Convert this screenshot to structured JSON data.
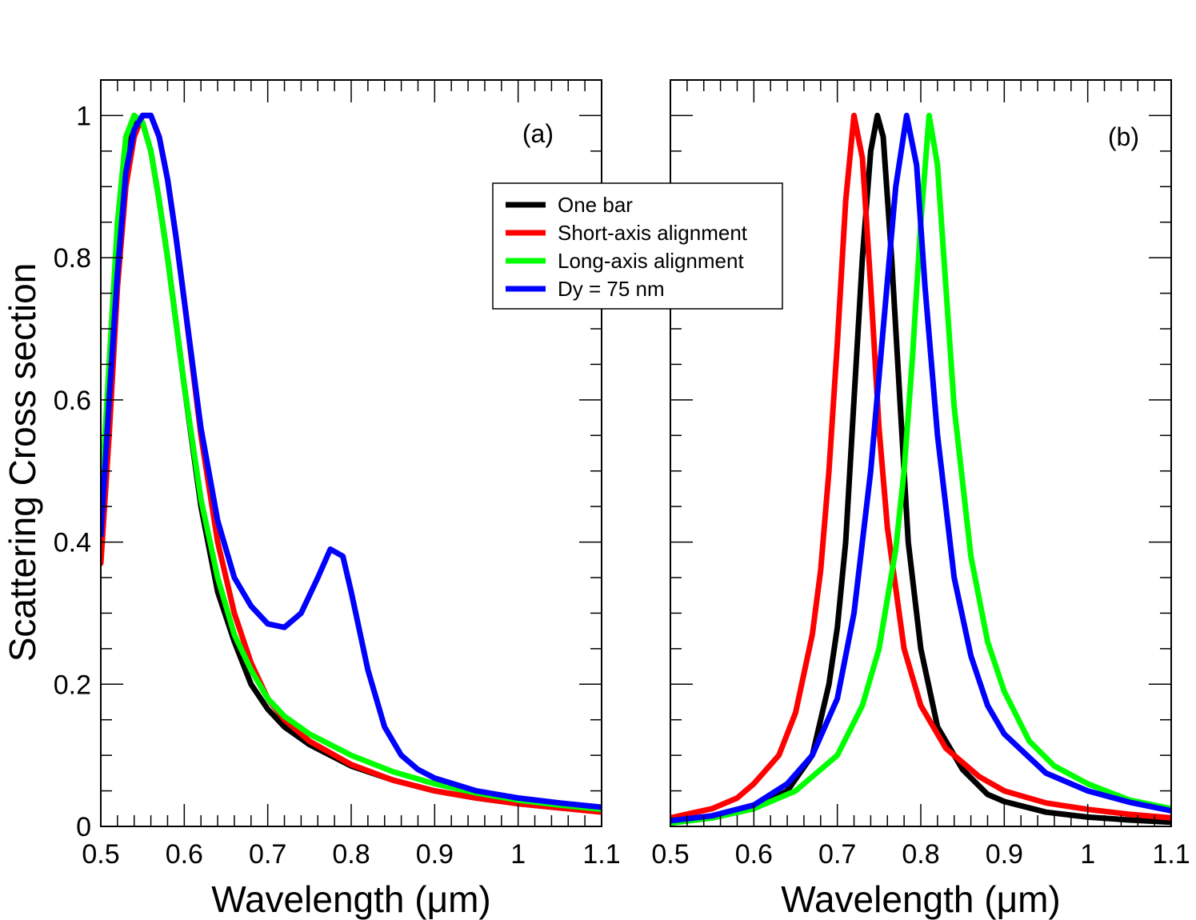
{
  "legend": {
    "entries": [
      {
        "label": "One bar",
        "color": "#000000"
      },
      {
        "label": "Short-axis alignment",
        "color": "#ff0000"
      },
      {
        "label": "Long-axis alignment",
        "color": "#00ff00"
      },
      {
        "label": "Dy = 75 nm",
        "color": "#0000ff"
      }
    ],
    "placement": "between panels, upper"
  },
  "chart_data": [
    {
      "type": "line",
      "panel_label": "(a)",
      "xlabel": "Wavelength (μm)",
      "ylabel": "Scattering Cross section",
      "xlim": [
        0.5,
        1.1
      ],
      "ylim": [
        0,
        1.05
      ],
      "xticks": [
        "0.5",
        "0.6",
        "0.7",
        "0.8",
        "0.9",
        "1",
        "1.1"
      ],
      "xtick_values": [
        0.5,
        0.6,
        0.7,
        0.8,
        0.9,
        1.0,
        1.1
      ],
      "yticks": [
        "0",
        "0.2",
        "0.4",
        "0.6",
        "0.8",
        "1"
      ],
      "ytick_values": [
        0,
        0.2,
        0.4,
        0.6,
        0.8,
        1.0
      ],
      "grid": false,
      "series": [
        {
          "name": "One bar",
          "color": "#000000",
          "points": [
            [
              0.5,
              0.43
            ],
            [
              0.51,
              0.62
            ],
            [
              0.52,
              0.82
            ],
            [
              0.53,
              0.95
            ],
            [
              0.54,
              1.0
            ],
            [
              0.55,
              0.99
            ],
            [
              0.56,
              0.95
            ],
            [
              0.57,
              0.88
            ],
            [
              0.58,
              0.8
            ],
            [
              0.59,
              0.71
            ],
            [
              0.6,
              0.62
            ],
            [
              0.62,
              0.45
            ],
            [
              0.64,
              0.33
            ],
            [
              0.66,
              0.26
            ],
            [
              0.68,
              0.2
            ],
            [
              0.7,
              0.165
            ],
            [
              0.72,
              0.14
            ],
            [
              0.75,
              0.115
            ],
            [
              0.8,
              0.085
            ],
            [
              0.85,
              0.065
            ],
            [
              0.9,
              0.05
            ],
            [
              0.95,
              0.04
            ],
            [
              1.0,
              0.032
            ],
            [
              1.05,
              0.026
            ],
            [
              1.1,
              0.021
            ]
          ]
        },
        {
          "name": "Short-axis alignment",
          "color": "#ff0000",
          "points": [
            [
              0.5,
              0.37
            ],
            [
              0.51,
              0.55
            ],
            [
              0.52,
              0.76
            ],
            [
              0.53,
              0.9
            ],
            [
              0.54,
              0.97
            ],
            [
              0.55,
              1.0
            ],
            [
              0.56,
              1.0
            ],
            [
              0.57,
              0.97
            ],
            [
              0.58,
              0.91
            ],
            [
              0.59,
              0.83
            ],
            [
              0.6,
              0.74
            ],
            [
              0.62,
              0.55
            ],
            [
              0.64,
              0.4
            ],
            [
              0.66,
              0.3
            ],
            [
              0.68,
              0.23
            ],
            [
              0.7,
              0.18
            ],
            [
              0.72,
              0.15
            ],
            [
              0.75,
              0.12
            ],
            [
              0.8,
              0.087
            ],
            [
              0.85,
              0.065
            ],
            [
              0.9,
              0.05
            ],
            [
              0.95,
              0.04
            ],
            [
              1.0,
              0.032
            ],
            [
              1.05,
              0.026
            ],
            [
              1.1,
              0.02
            ]
          ]
        },
        {
          "name": "Long-axis alignment",
          "color": "#00ff00",
          "points": [
            [
              0.5,
              0.45
            ],
            [
              0.51,
              0.65
            ],
            [
              0.52,
              0.85
            ],
            [
              0.53,
              0.97
            ],
            [
              0.54,
              1.0
            ],
            [
              0.55,
              0.99
            ],
            [
              0.56,
              0.95
            ],
            [
              0.57,
              0.88
            ],
            [
              0.58,
              0.8
            ],
            [
              0.59,
              0.71
            ],
            [
              0.6,
              0.62
            ],
            [
              0.62,
              0.46
            ],
            [
              0.64,
              0.35
            ],
            [
              0.66,
              0.27
            ],
            [
              0.68,
              0.22
            ],
            [
              0.7,
              0.18
            ],
            [
              0.72,
              0.155
            ],
            [
              0.75,
              0.13
            ],
            [
              0.8,
              0.1
            ],
            [
              0.85,
              0.077
            ],
            [
              0.9,
              0.06
            ],
            [
              0.95,
              0.047
            ],
            [
              1.0,
              0.037
            ],
            [
              1.05,
              0.03
            ],
            [
              1.1,
              0.024
            ]
          ]
        },
        {
          "name": "Dy = 75 nm",
          "color": "#0000ff",
          "points": [
            [
              0.5,
              0.41
            ],
            [
              0.51,
              0.6
            ],
            [
              0.52,
              0.78
            ],
            [
              0.53,
              0.92
            ],
            [
              0.54,
              0.98
            ],
            [
              0.55,
              1.0
            ],
            [
              0.56,
              1.0
            ],
            [
              0.57,
              0.97
            ],
            [
              0.58,
              0.91
            ],
            [
              0.59,
              0.83
            ],
            [
              0.6,
              0.74
            ],
            [
              0.62,
              0.56
            ],
            [
              0.64,
              0.43
            ],
            [
              0.66,
              0.35
            ],
            [
              0.68,
              0.31
            ],
            [
              0.7,
              0.285
            ],
            [
              0.72,
              0.28
            ],
            [
              0.74,
              0.3
            ],
            [
              0.76,
              0.35
            ],
            [
              0.775,
              0.39
            ],
            [
              0.79,
              0.38
            ],
            [
              0.8,
              0.33
            ],
            [
              0.82,
              0.22
            ],
            [
              0.84,
              0.14
            ],
            [
              0.86,
              0.1
            ],
            [
              0.88,
              0.08
            ],
            [
              0.9,
              0.068
            ],
            [
              0.95,
              0.05
            ],
            [
              1.0,
              0.04
            ],
            [
              1.05,
              0.033
            ],
            [
              1.1,
              0.027
            ]
          ]
        }
      ]
    },
    {
      "type": "line",
      "panel_label": "(b)",
      "xlabel": "Wavelength (μm)",
      "ylabel": "",
      "xlim": [
        0.5,
        1.1
      ],
      "ylim": [
        0,
        1.05
      ],
      "xticks": [
        "0.5",
        "0.6",
        "0.7",
        "0.8",
        "0.9",
        "1",
        "1.1"
      ],
      "xtick_values": [
        0.5,
        0.6,
        0.7,
        0.8,
        0.9,
        1.0,
        1.1
      ],
      "yticks": [],
      "ytick_values": [
        0,
        0.2,
        0.4,
        0.6,
        0.8,
        1.0
      ],
      "grid": false,
      "series": [
        {
          "name": "One bar",
          "color": "#000000",
          "points": [
            [
              0.5,
              0.005
            ],
            [
              0.55,
              0.012
            ],
            [
              0.6,
              0.025
            ],
            [
              0.64,
              0.05
            ],
            [
              0.67,
              0.1
            ],
            [
              0.69,
              0.2
            ],
            [
              0.7,
              0.28
            ],
            [
              0.71,
              0.4
            ],
            [
              0.72,
              0.6
            ],
            [
              0.73,
              0.8
            ],
            [
              0.74,
              0.95
            ],
            [
              0.748,
              1.0
            ],
            [
              0.755,
              0.97
            ],
            [
              0.765,
              0.8
            ],
            [
              0.775,
              0.6
            ],
            [
              0.785,
              0.4
            ],
            [
              0.8,
              0.25
            ],
            [
              0.82,
              0.14
            ],
            [
              0.85,
              0.08
            ],
            [
              0.88,
              0.045
            ],
            [
              0.9,
              0.035
            ],
            [
              0.95,
              0.02
            ],
            [
              1.0,
              0.013
            ],
            [
              1.05,
              0.009
            ],
            [
              1.1,
              0.006
            ]
          ]
        },
        {
          "name": "Short-axis alignment",
          "color": "#ff0000",
          "points": [
            [
              0.5,
              0.012
            ],
            [
              0.55,
              0.025
            ],
            [
              0.58,
              0.04
            ],
            [
              0.6,
              0.06
            ],
            [
              0.63,
              0.1
            ],
            [
              0.65,
              0.16
            ],
            [
              0.67,
              0.27
            ],
            [
              0.68,
              0.36
            ],
            [
              0.69,
              0.5
            ],
            [
              0.7,
              0.68
            ],
            [
              0.71,
              0.88
            ],
            [
              0.72,
              1.0
            ],
            [
              0.73,
              0.94
            ],
            [
              0.74,
              0.76
            ],
            [
              0.75,
              0.56
            ],
            [
              0.76,
              0.42
            ],
            [
              0.78,
              0.25
            ],
            [
              0.8,
              0.17
            ],
            [
              0.83,
              0.11
            ],
            [
              0.87,
              0.07
            ],
            [
              0.9,
              0.05
            ],
            [
              0.95,
              0.033
            ],
            [
              1.0,
              0.024
            ],
            [
              1.05,
              0.017
            ],
            [
              1.1,
              0.012
            ]
          ]
        },
        {
          "name": "Long-axis alignment",
          "color": "#00ff00",
          "points": [
            [
              0.5,
              0.005
            ],
            [
              0.55,
              0.012
            ],
            [
              0.6,
              0.025
            ],
            [
              0.65,
              0.05
            ],
            [
              0.7,
              0.1
            ],
            [
              0.73,
              0.17
            ],
            [
              0.75,
              0.25
            ],
            [
              0.77,
              0.39
            ],
            [
              0.78,
              0.5
            ],
            [
              0.79,
              0.66
            ],
            [
              0.8,
              0.85
            ],
            [
              0.81,
              1.0
            ],
            [
              0.82,
              0.93
            ],
            [
              0.83,
              0.76
            ],
            [
              0.84,
              0.59
            ],
            [
              0.86,
              0.38
            ],
            [
              0.88,
              0.26
            ],
            [
              0.9,
              0.19
            ],
            [
              0.93,
              0.12
            ],
            [
              0.96,
              0.085
            ],
            [
              1.0,
              0.06
            ],
            [
              1.05,
              0.037
            ],
            [
              1.1,
              0.025
            ]
          ]
        },
        {
          "name": "Dy = 75 nm",
          "color": "#0000ff",
          "points": [
            [
              0.5,
              0.008
            ],
            [
              0.55,
              0.015
            ],
            [
              0.6,
              0.03
            ],
            [
              0.64,
              0.06
            ],
            [
              0.67,
              0.1
            ],
            [
              0.7,
              0.18
            ],
            [
              0.72,
              0.3
            ],
            [
              0.74,
              0.5
            ],
            [
              0.755,
              0.7
            ],
            [
              0.77,
              0.9
            ],
            [
              0.783,
              1.0
            ],
            [
              0.795,
              0.93
            ],
            [
              0.805,
              0.76
            ],
            [
              0.82,
              0.55
            ],
            [
              0.84,
              0.35
            ],
            [
              0.86,
              0.24
            ],
            [
              0.88,
              0.17
            ],
            [
              0.9,
              0.13
            ],
            [
              0.95,
              0.075
            ],
            [
              1.0,
              0.05
            ],
            [
              1.05,
              0.034
            ],
            [
              1.1,
              0.022
            ]
          ]
        }
      ]
    }
  ]
}
